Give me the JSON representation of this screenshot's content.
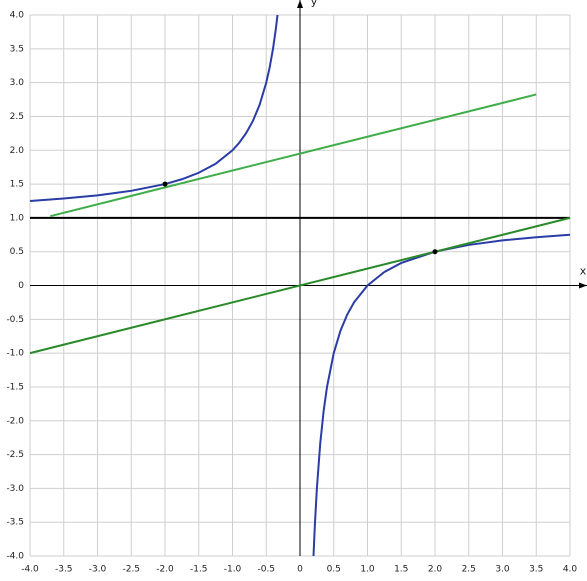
{
  "chart_data": {
    "type": "line",
    "x_label": "x",
    "y_label": "y",
    "xlim": [
      -4,
      4
    ],
    "ylim": [
      -4,
      4
    ],
    "grid": true,
    "xticks": [
      {
        "value": -4,
        "label": "-4.0"
      },
      {
        "value": -3.5,
        "label": "-3.5"
      },
      {
        "value": -3,
        "label": "-3.0"
      },
      {
        "value": -2.5,
        "label": "-2.5"
      },
      {
        "value": -2,
        "label": "-2.0"
      },
      {
        "value": -1.5,
        "label": "-1.5"
      },
      {
        "value": -1,
        "label": "-1.0"
      },
      {
        "value": -0.5,
        "label": "-0.5"
      },
      0,
      0.5,
      {
        "value": 1,
        "label": "1.0"
      },
      1.5,
      {
        "value": 2,
        "label": "2.0"
      },
      2.5,
      {
        "value": 3,
        "label": "3.0"
      },
      3.5,
      {
        "value": 4,
        "label": "4.0"
      }
    ],
    "yticks": [
      {
        "value": -4,
        "label": "-4.0"
      },
      {
        "value": -3.5,
        "label": "-3.5"
      },
      {
        "value": -3,
        "label": "-3.0"
      },
      {
        "value": -2.5,
        "label": "-2.5"
      },
      {
        "value": -2,
        "label": "-2.0"
      },
      {
        "value": -1.5,
        "label": "-1.5"
      },
      {
        "value": -1,
        "label": "-1.0"
      },
      {
        "value": -0.5,
        "label": "-0.5"
      },
      0,
      0.5,
      {
        "value": 1,
        "label": "1.0"
      },
      1.5,
      {
        "value": 2,
        "label": "2.0"
      },
      2.5,
      {
        "value": 3,
        "label": "3.0"
      },
      3.5,
      {
        "value": 4,
        "label": "4.0"
      }
    ],
    "series": [
      {
        "color": "#000000",
        "x": [
          -4,
          4
        ],
        "values": [
          1,
          1
        ]
      },
      {
        "color": "#2a3ca6",
        "x": [
          -4,
          -3.5,
          -3,
          -2.5,
          -2,
          -1.75,
          -1.5,
          -1.25,
          -1,
          -0.9,
          -0.8,
          -0.7,
          -0.6,
          -0.5,
          -0.45,
          -0.4,
          -0.36,
          -0.333,
          null,
          0.2,
          0.22,
          0.25,
          0.3,
          0.35,
          0.4,
          0.5,
          0.6,
          0.7,
          0.8,
          1,
          1.25,
          1.5,
          2,
          2.5,
          3,
          3.5,
          4
        ],
        "values": [
          1.25,
          1.286,
          1.333,
          1.4,
          1.5,
          1.571,
          1.667,
          1.8,
          2,
          2.111,
          2.25,
          2.429,
          2.667,
          3,
          3.222,
          3.5,
          3.778,
          4.0,
          null,
          -4,
          -3.545,
          -3,
          -2.333,
          -1.857,
          -1.5,
          -1,
          -0.667,
          -0.429,
          -0.25,
          0,
          0.2,
          0.333,
          0.5,
          0.6,
          0.667,
          0.714,
          0.75
        ]
      },
      {
        "color": "#3fae4a",
        "x": [
          -3.7,
          3.5
        ],
        "values": [
          1.025,
          2.825
        ]
      },
      {
        "color": "#2b8a2b",
        "x": [
          -4,
          4
        ],
        "values": [
          -1,
          1
        ]
      },
      {
        "color": "#000000",
        "type": "scatter",
        "x": [
          -2,
          2
        ],
        "values": [
          1.5,
          0.5
        ]
      }
    ]
  }
}
